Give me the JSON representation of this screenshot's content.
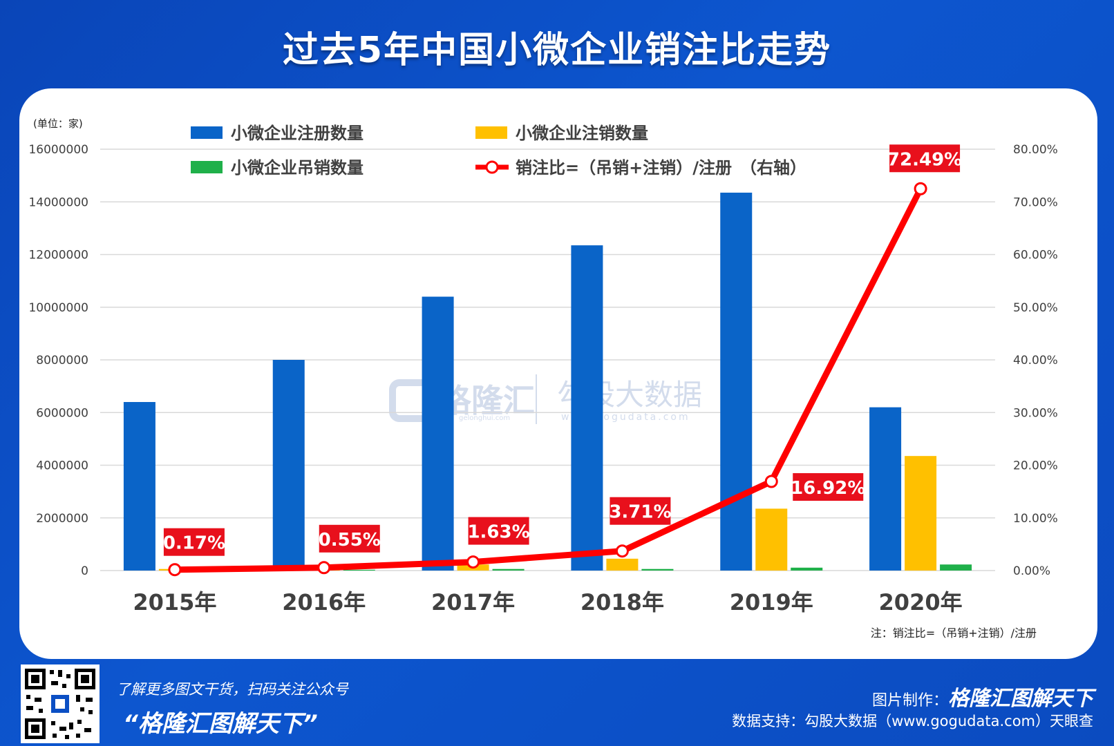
{
  "title": "过去5年中国小微企业销注比走势",
  "chart_data": {
    "type": "bar",
    "unit_label": "(单位：家)",
    "note": "注：销注比=（吊销+注销）/注册",
    "categories": [
      "2015年",
      "2016年",
      "2017年",
      "2018年",
      "2019年",
      "2020年"
    ],
    "y_left": {
      "ticks": [
        "16000000",
        "14000000",
        "12000000",
        "10000000",
        "8000000",
        "6000000",
        "4000000",
        "2000000",
        "0"
      ],
      "range": [
        0,
        16000000
      ]
    },
    "y_right": {
      "ticks": [
        "80.00%",
        "70.00%",
        "60.00%",
        "50.00%",
        "40.00%",
        "30.00%",
        "20.00%",
        "10.00%",
        "0.00%"
      ],
      "range": [
        0,
        80
      ]
    },
    "series": [
      {
        "name": "小微企业注册数量",
        "color": "#0a64c8",
        "type": "bar",
        "values": [
          6400000,
          8000000,
          10400000,
          12350000,
          14350000,
          6200000
        ]
      },
      {
        "name": "小微企业注销数量",
        "color": "#ffc000",
        "type": "bar",
        "values": [
          60000,
          80000,
          230000,
          450000,
          2350000,
          4350000
        ]
      },
      {
        "name": "小微企业吊销数量",
        "color": "#1fb04a",
        "type": "bar",
        "values": [
          20000,
          30000,
          60000,
          60000,
          110000,
          230000
        ]
      },
      {
        "name": "销注比=（吊销+注销）/注册　（右轴）",
        "color": "#ff0000",
        "type": "line",
        "values": [
          0.17,
          0.55,
          1.63,
          3.71,
          16.92,
          72.49
        ],
        "labels": [
          "0.17%",
          "0.55%",
          "1.63%",
          "3.71%",
          "16.92%",
          "72.49%"
        ]
      }
    ],
    "watermark": [
      "格隆汇",
      "gelonghui.com",
      "勾股大数据",
      "www.gogudata.com"
    ]
  },
  "footer": {
    "left_line1": "了解更多图文干货，扫码关注公众号",
    "left_line2": "“格隆汇图解天下”",
    "credit_label": "图片制作：",
    "credit_brand": "格隆汇图解天下",
    "data_support": "数据支持：勾股大数据（www.gogudata.com）天眼查"
  },
  "colors": {
    "background": "#0b4fc4",
    "accent": "#ff0000"
  }
}
